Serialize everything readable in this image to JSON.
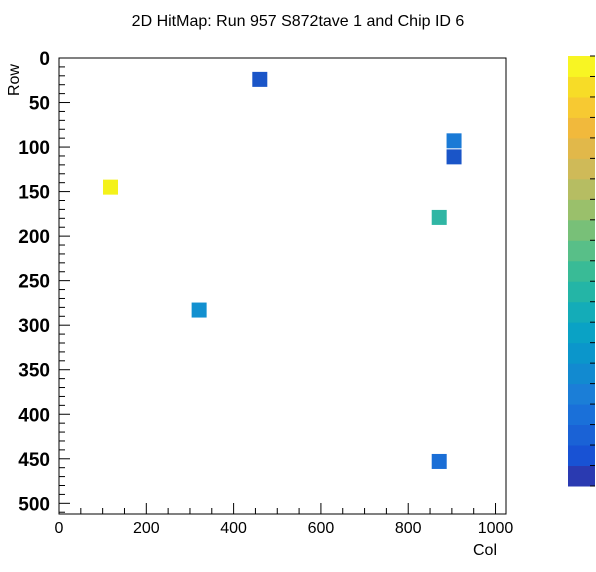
{
  "chart_data": {
    "type": "heatmap",
    "title": "2D HitMap: Run 957 S872tave 1 and Chip ID 6",
    "xlabel": "Col",
    "ylabel": "Row",
    "xlim": [
      0,
      1024
    ],
    "ylim": [
      0,
      512
    ],
    "y_axis_inverted": true,
    "x_ticks": [
      "0",
      "200",
      "400",
      "600",
      "800",
      "1000"
    ],
    "y_ticks": [
      "0",
      "50",
      "100",
      "150",
      "200",
      "250",
      "300",
      "350",
      "400",
      "450",
      "500"
    ],
    "grid": false,
    "colorbar": true,
    "colorbar_placement": "right",
    "palette": [
      "#2a3ab1",
      "#1852d4",
      "#1a62d6",
      "#1a70d9",
      "#1b7ed7",
      "#128ad0",
      "#0b96cb",
      "#0aa2c5",
      "#14acb8",
      "#24b5a6",
      "#39bb96",
      "#58bf88",
      "#78c078",
      "#9ac06b",
      "#b6bd62",
      "#cfba58",
      "#e1b84a",
      "#f1b93c",
      "#f7c932",
      "#f7dc27",
      "#f8f523"
    ],
    "points": [
      {
        "col": 460,
        "row": 24,
        "color": "#1a55c8"
      },
      {
        "col": 905,
        "row": 93,
        "color": "#1a7ad6"
      },
      {
        "col": 905,
        "row": 111,
        "color": "#1a55c8"
      },
      {
        "col": 118,
        "row": 145,
        "color": "#f4f21a"
      },
      {
        "col": 871,
        "row": 179,
        "color": "#30b6a4"
      },
      {
        "col": 321,
        "row": 283,
        "color": "#1290d0"
      },
      {
        "col": 871,
        "row": 453,
        "color": "#1a6ed6"
      }
    ]
  }
}
